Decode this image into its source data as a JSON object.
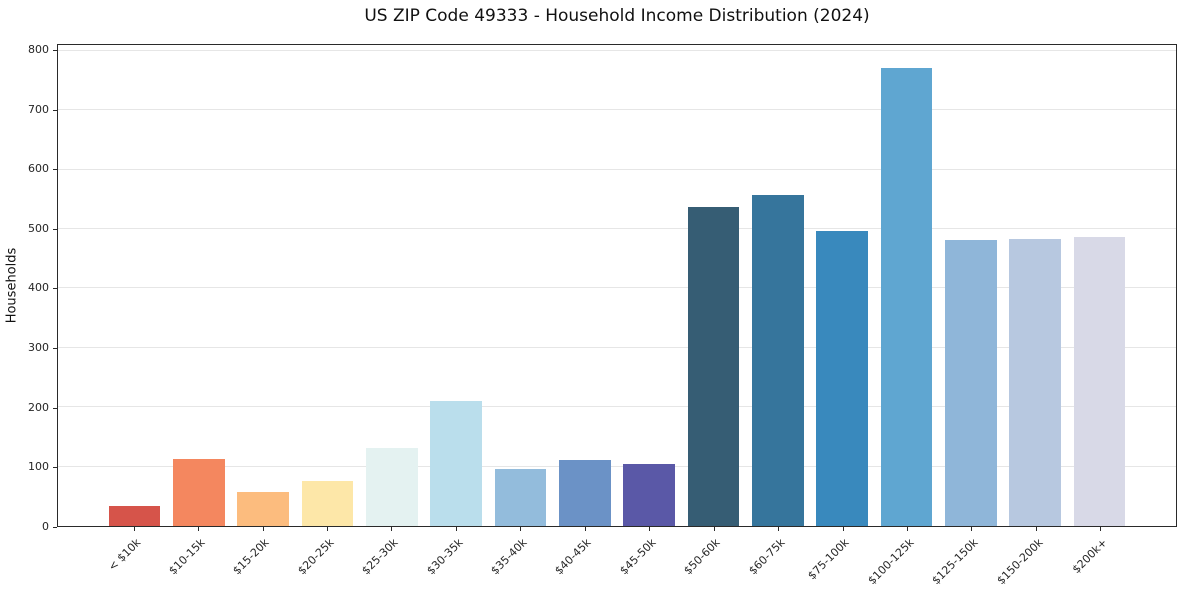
{
  "title": "US ZIP Code 49333 - Household Income Distribution (2024)",
  "chart_data": {
    "type": "bar",
    "title": "US ZIP Code 49333 - Household Income Distribution (2024)",
    "xlabel": "",
    "ylabel": "Households",
    "categories": [
      "< $10k",
      "$10-15k",
      "$15-20k",
      "$20-25k",
      "$25-30k",
      "$30-35k",
      "$35-40k",
      "$40-45k",
      "$45-50k",
      "$50-60k",
      "$60-75k",
      "$75-100k",
      "$100-125k",
      "$125-150k",
      "$150-200k",
      "$200k+"
    ],
    "values": [
      33,
      113,
      57,
      75,
      131,
      210,
      96,
      111,
      104,
      538,
      558,
      496,
      771,
      481,
      484,
      486
    ],
    "bar_colors": [
      "#d6544a",
      "#f4875f",
      "#fcbc7e",
      "#fde7a8",
      "#e4f2f1",
      "#badeec",
      "#93bcdc",
      "#6b92c6",
      "#5a58a7",
      "#365d74",
      "#36759c",
      "#3989bd",
      "#5fa6d1",
      "#8fb6d9",
      "#b7c8e0",
      "#d8d9e7"
    ],
    "yticks": [
      0,
      100,
      200,
      300,
      400,
      500,
      600,
      700,
      800
    ],
    "ylim": [
      0,
      810
    ],
    "grid": "horizontal",
    "gridline_color": "#e6e6e6",
    "legend": "none"
  }
}
